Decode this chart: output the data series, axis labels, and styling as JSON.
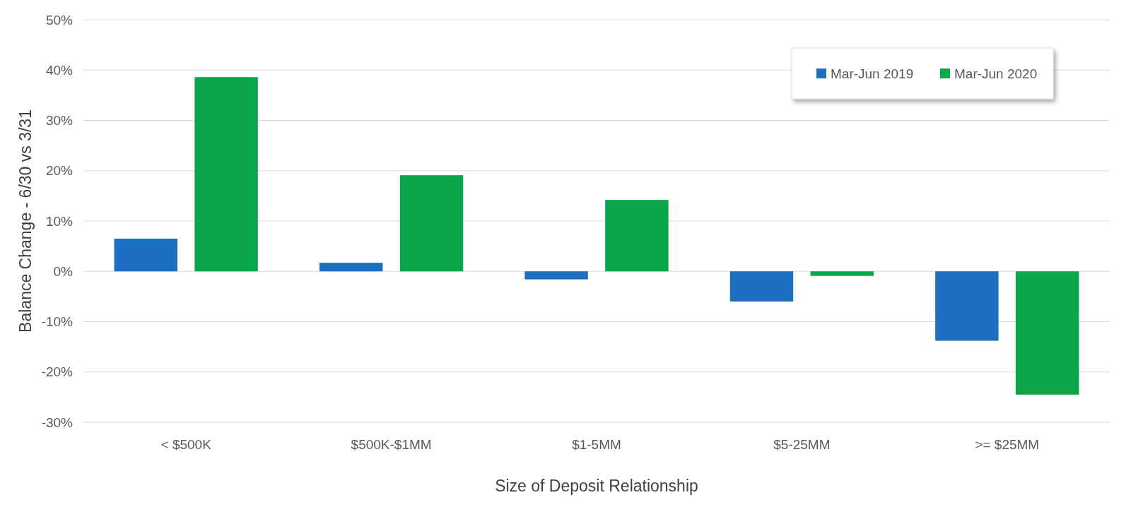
{
  "chart_data": {
    "type": "bar",
    "xlabel": "Size of Deposit Relationship",
    "ylabel": "Balance Change - 6/30 vs 3/31",
    "categories": [
      "< $500K",
      "$500K-$1MM",
      "$1-5MM",
      "$5-25MM",
      ">= $25MM"
    ],
    "series": [
      {
        "name": "Mar-Jun 2019",
        "color": "#1d6fc0",
        "values": [
          6.5,
          1.7,
          -1.6,
          -6.0,
          -13.8
        ]
      },
      {
        "name": "Mar-Jun 2020",
        "color": "#0aa64a",
        "values": [
          38.6,
          19.1,
          14.2,
          -0.9,
          -24.5
        ]
      }
    ],
    "ylim": [
      -30,
      50
    ],
    "yticks": [
      {
        "value": -30,
        "label": "-30%"
      },
      {
        "value": -20,
        "label": "-20%"
      },
      {
        "value": -10,
        "label": "-10%"
      },
      {
        "value": 0,
        "label": "0%"
      },
      {
        "value": 10,
        "label": "10%"
      },
      {
        "value": 20,
        "label": "20%"
      },
      {
        "value": 30,
        "label": "30%"
      },
      {
        "value": 40,
        "label": "40%"
      },
      {
        "value": 50,
        "label": "50%"
      }
    ],
    "grid": "y",
    "legend": "top right"
  }
}
